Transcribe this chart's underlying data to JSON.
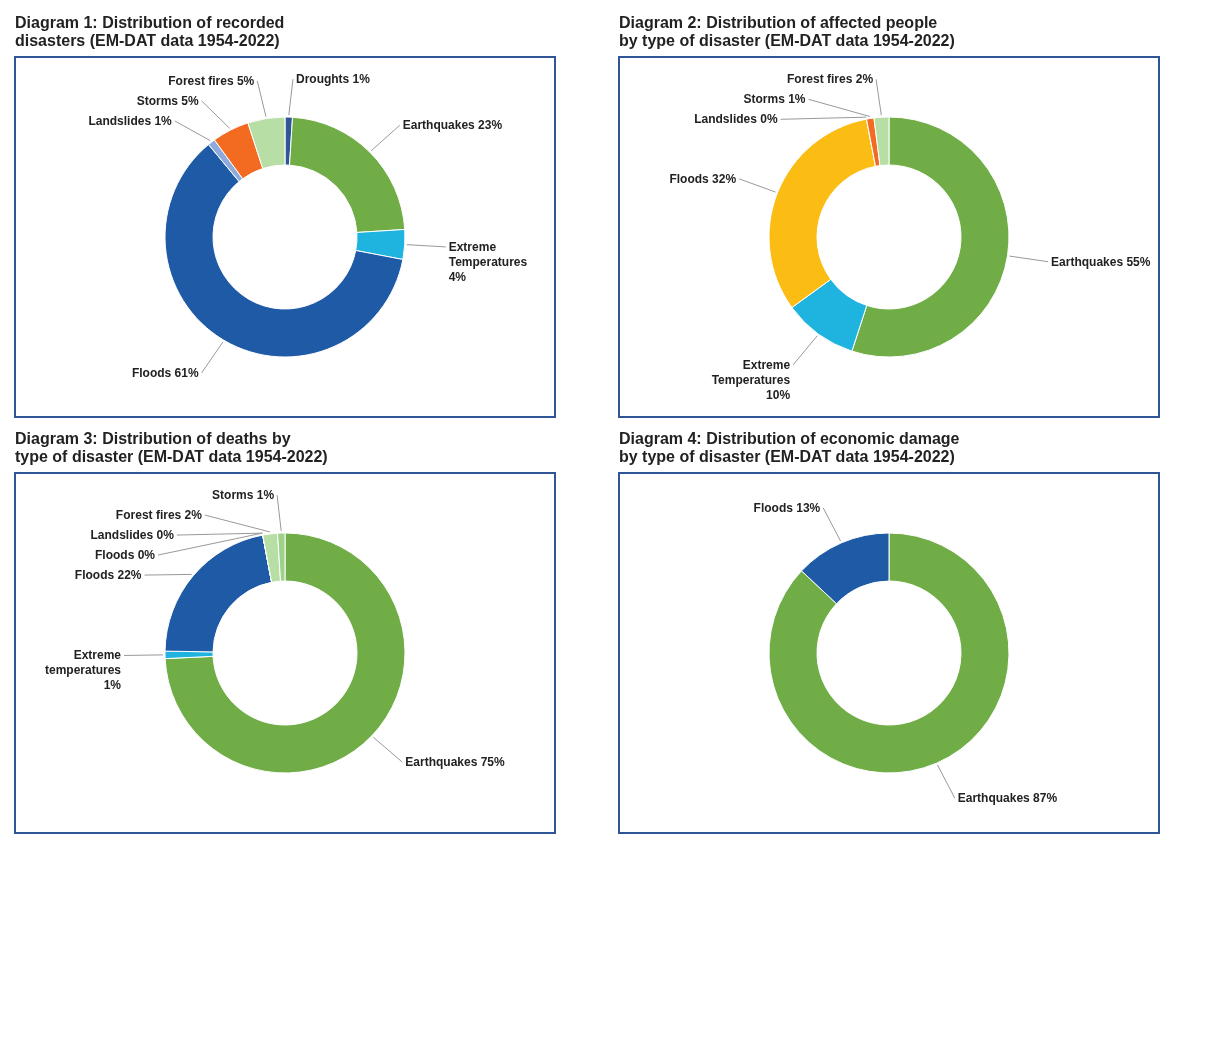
{
  "chart_data": [
    {
      "type": "donut",
      "title": "Diagram 1: Distribution of recorded disasters (EM-DAT data 1954-2022)",
      "categories": [
        "Droughts",
        "Earthquakes",
        "Extreme Temperatures",
        "Floods",
        "Landslides",
        "Storms",
        "Forest fires"
      ],
      "values": [
        1,
        23,
        4,
        61,
        1,
        5,
        5
      ],
      "value_labels": [
        "1%",
        "23%",
        "4%",
        "61%",
        "1%",
        "5%",
        "5%"
      ],
      "colors": [
        "#2f5597",
        "#70ad47",
        "#1fb3e0",
        "#1f5aa6",
        "#8faadc",
        "#f26b21",
        "#b7dfa5"
      ]
    },
    {
      "type": "donut",
      "title": "Diagram 2: Distribution of affected people by type of disaster (EM-DAT data 1954-2022)",
      "categories": [
        "Earthquakes",
        "Extreme Temperatures",
        "Floods",
        "Landslides",
        "Storms",
        "Forest fires"
      ],
      "values": [
        55,
        10,
        32,
        0,
        1,
        2
      ],
      "value_labels": [
        "55%",
        "10%",
        "32%",
        "0%",
        "1%",
        "2%"
      ],
      "colors": [
        "#70ad47",
        "#1fb3e0",
        "#fbbc13",
        "#8faadc",
        "#f26b21",
        "#b7dfa5"
      ]
    },
    {
      "type": "donut",
      "title": "Diagram 3: Distribution of deaths by type of disaster (EM-DAT data 1954-2022)",
      "categories": [
        "Earthquakes",
        "Extreme temperatures",
        "Floods",
        "Landslides",
        "Floods",
        "Forest fires",
        "Storms"
      ],
      "values": [
        75,
        1,
        22,
        0,
        0,
        2,
        1
      ],
      "value_labels": [
        "75%",
        "1%",
        "22%",
        "0%",
        "0%",
        "2%",
        "1%"
      ],
      "colors": [
        "#70ad47",
        "#1fb3e0",
        "#1f5aa6",
        "#8faadc",
        "#2f5597",
        "#b7dfa5",
        "#9dd28a"
      ]
    },
    {
      "type": "donut",
      "title": "Diagram 4: Distribution of economic damage by type of disaster (EM-DAT data 1954-2022)",
      "categories": [
        "Earthquakes",
        "Floods"
      ],
      "values": [
        87,
        13
      ],
      "value_labels": [
        "87%",
        "13%"
      ],
      "colors": [
        "#70ad47",
        "#1f5aa6"
      ]
    }
  ]
}
